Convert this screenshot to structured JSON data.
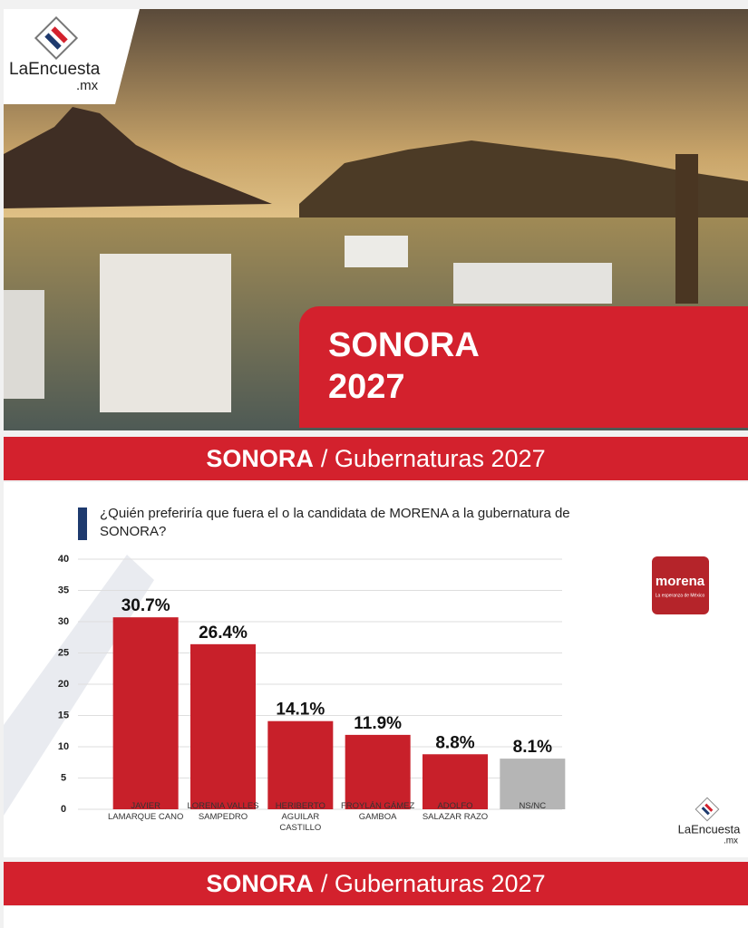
{
  "header": {
    "logo_name": "LaEncuesta",
    "logo_suffix": ".mx",
    "hero_title": "SONORA",
    "hero_year": "2027"
  },
  "banner": {
    "bold": "SONORA",
    "rest": "/ Gubernaturas 2027"
  },
  "question": "¿Quién preferiría que fuera el o la candidata de MORENA a la gubernatura de SONORA?",
  "party_logo": {
    "name": "morena",
    "tagline": "La esperanza de México"
  },
  "footer_logo": {
    "name": "LaEncuesta",
    "suffix": ".mx"
  },
  "chart_data": {
    "type": "bar",
    "categories": [
      "JAVIER LAMARQUE CANO",
      "LORENIA VALLES SAMPEDRO",
      "HERIBERTO AGUILAR CASTILLO",
      "FROYLÁN GÁMEZ GAMBOA",
      "ADOLFO SALAZAR RAZO",
      "NS/NC"
    ],
    "values": [
      30.7,
      26.4,
      14.1,
      11.9,
      8.8,
      8.1
    ],
    "value_labels": [
      "30.7%",
      "26.4%",
      "14.1%",
      "11.9%",
      "8.8%",
      "8.1%"
    ],
    "colors": [
      "#c8202a",
      "#c8202a",
      "#c8202a",
      "#c8202a",
      "#c8202a",
      "#b5b5b5"
    ],
    "ylim": [
      0,
      40
    ],
    "yticks": [
      0,
      5,
      10,
      15,
      20,
      25,
      30,
      35,
      40
    ],
    "grid": true
  },
  "banner2": {
    "bold": "SONORA",
    "rest": "/ Gubernaturas 2027"
  }
}
